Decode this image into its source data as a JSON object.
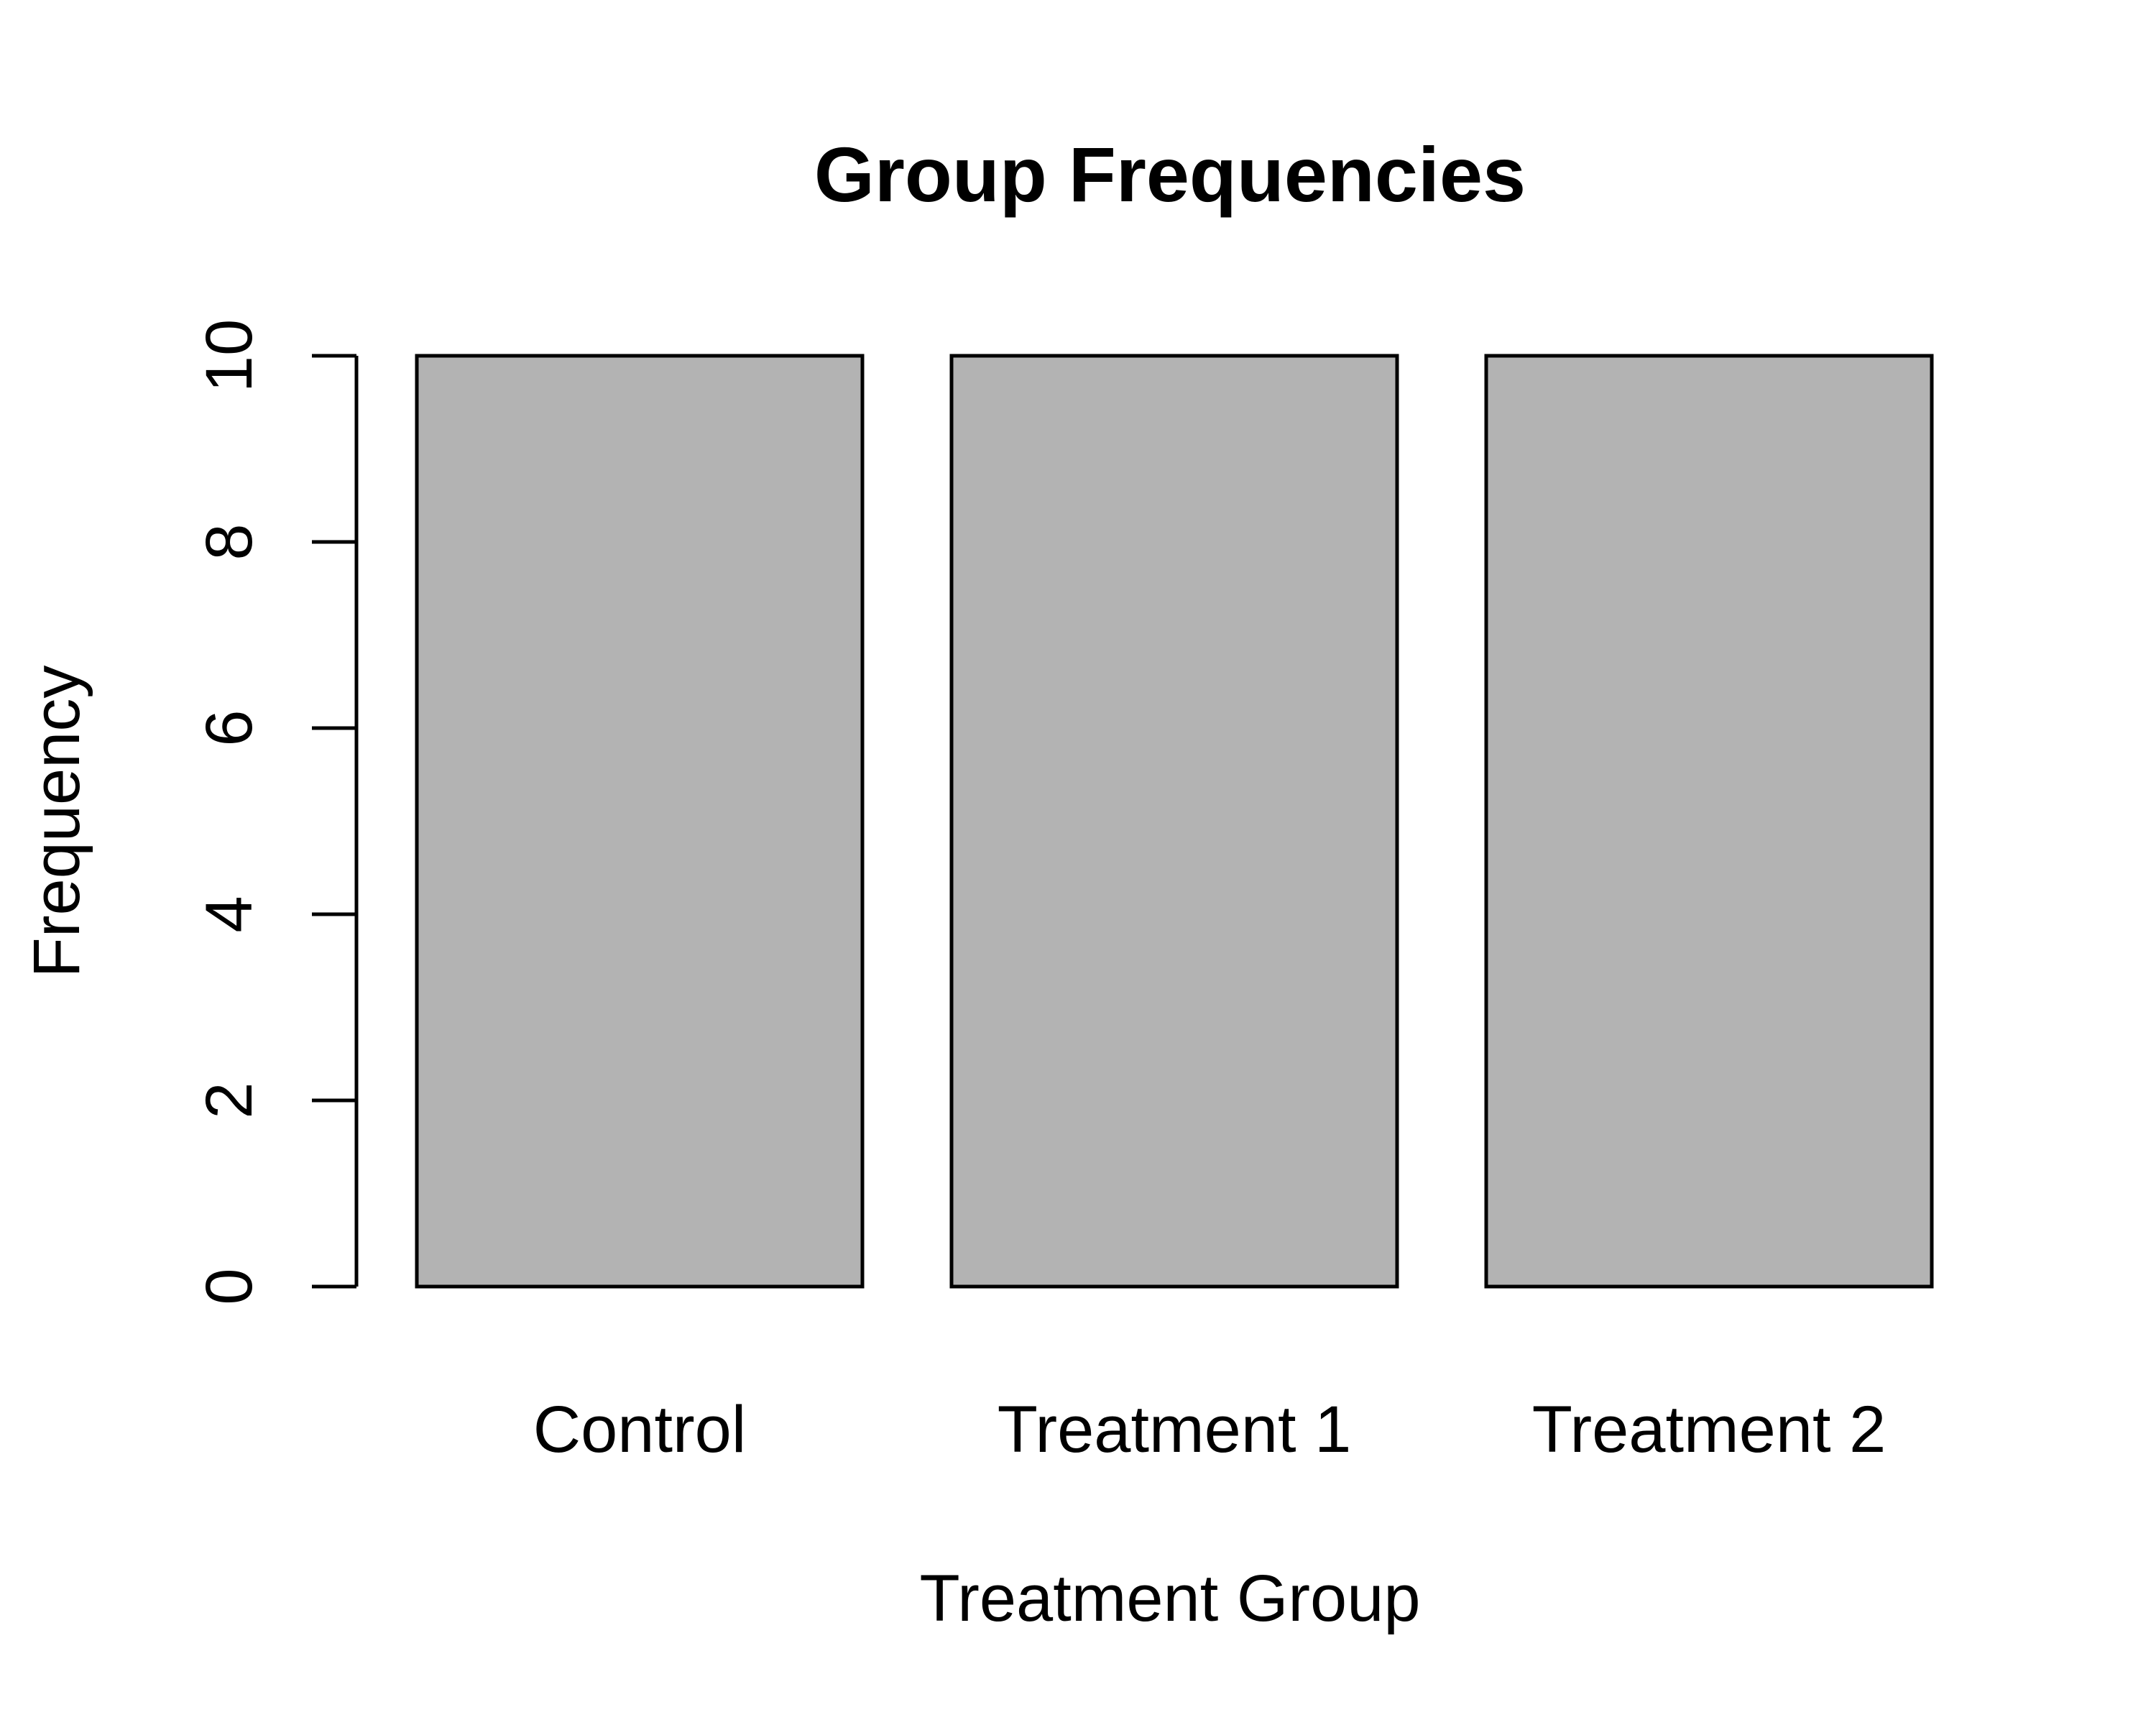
{
  "chart_data": {
    "type": "bar",
    "title": "Group Frequencies",
    "xlabel": "Treatment Group",
    "ylabel": "Frequency",
    "categories": [
      "Control",
      "Treatment 1",
      "Treatment 2"
    ],
    "values": [
      10,
      10,
      10
    ],
    "ylim": [
      0,
      10
    ],
    "yticks": [
      "0",
      "2",
      "4",
      "6",
      "8",
      "10"
    ],
    "grid": false,
    "legend": "none",
    "bar_color": "#b3b3b3",
    "bar_border_color": "#000000"
  }
}
